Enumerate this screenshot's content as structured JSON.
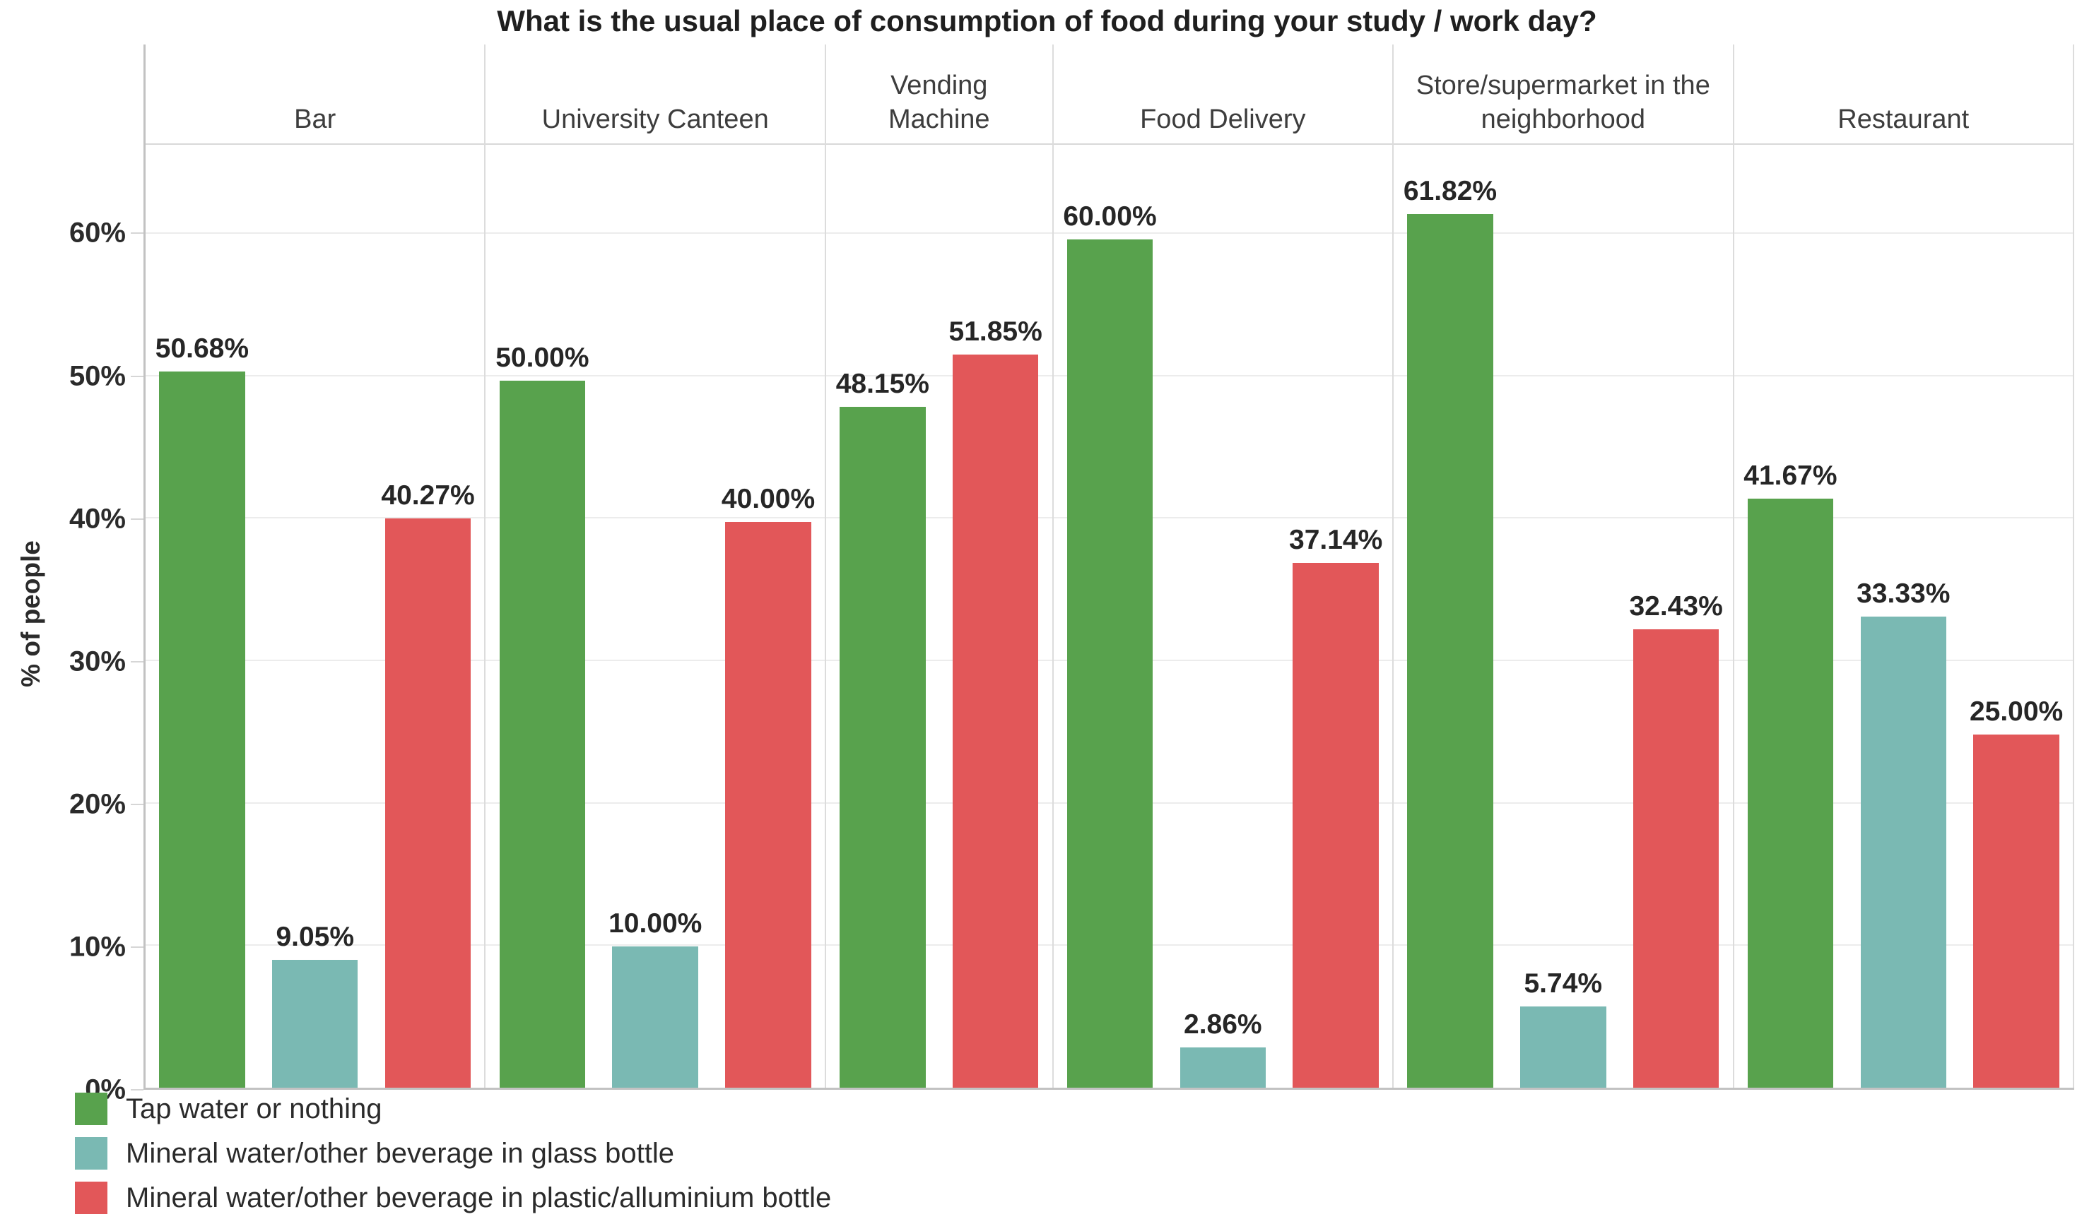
{
  "title": "What is the usual place of consumption of food during your study / work day?",
  "y_axis": {
    "title": "% of people",
    "max": 66.7,
    "ticks": [
      {
        "label": "0%",
        "value": 0
      },
      {
        "label": "10%",
        "value": 10
      },
      {
        "label": "20%",
        "value": 20
      },
      {
        "label": "30%",
        "value": 30
      },
      {
        "label": "40%",
        "value": 40
      },
      {
        "label": "50%",
        "value": 50
      },
      {
        "label": "60%",
        "value": 60
      }
    ]
  },
  "legend": {
    "items": [
      {
        "key": "tap",
        "label": "Tap water or nothing",
        "color": "#58a24d"
      },
      {
        "key": "glass",
        "label": "Mineral water/other beverage in glass bottle",
        "color": "#7ab9b3"
      },
      {
        "key": "plastic",
        "label": "Mineral water/other beverage in plastic/alluminium bottle",
        "color": "#e25759"
      }
    ]
  },
  "chart_data": {
    "type": "bar",
    "title": "What is the usual place of consumption of food during your study / work day?",
    "xlabel": "",
    "ylabel": "% of people",
    "ylim": [
      0,
      66.7
    ],
    "grid": true,
    "legend_position": "bottom-left",
    "categories": [
      "Bar",
      "University Canteen",
      "Vending Machine",
      "Food Delivery",
      "Store/supermarket in the neighborhood",
      "Restaurant"
    ],
    "categories_display": [
      "Bar",
      "University Canteen",
      "Vending\nMachine",
      "Food Delivery",
      "Store/supermarket in the\nneighborhood",
      "Restaurant"
    ],
    "series": [
      {
        "name": "Tap water or nothing",
        "key": "tap",
        "color": "#58a24d",
        "values": [
          50.68,
          50.0,
          48.15,
          60.0,
          61.82,
          41.67
        ],
        "labels": [
          "50.68%",
          "50.00%",
          "48.15%",
          "60.00%",
          "61.82%",
          "41.67%"
        ]
      },
      {
        "name": "Mineral water/other beverage in glass bottle",
        "key": "glass",
        "color": "#7ab9b3",
        "values": [
          9.05,
          10.0,
          null,
          2.86,
          5.74,
          33.33
        ],
        "labels": [
          "9.05%",
          "10.00%",
          null,
          "2.86%",
          "5.74%",
          "33.33%"
        ]
      },
      {
        "name": "Mineral water/other beverage in plastic/alluminium bottle",
        "key": "plastic",
        "color": "#e25759",
        "values": [
          40.27,
          40.0,
          51.85,
          37.14,
          32.43,
          25.0
        ],
        "labels": [
          "40.27%",
          "40.00%",
          "51.85%",
          "37.14%",
          "32.43%",
          "25.00%"
        ]
      }
    ]
  }
}
